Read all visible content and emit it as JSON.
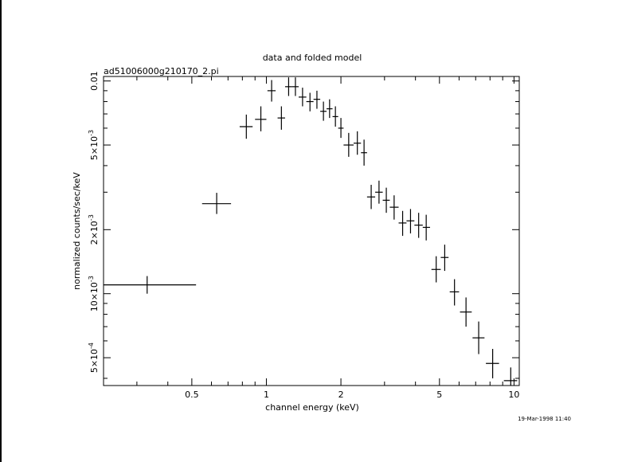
{
  "chart_data": {
    "type": "scatter",
    "title": "data and folded model",
    "subtitle": "ad51006000g210170_2.pi",
    "xlabel": "channel energy (keV)",
    "ylabel": "normalized counts/sec/keV",
    "timestamp": "19-Mar-1998 11:40",
    "x_scale": "log",
    "y_scale": "log",
    "xlim": [
      0.22,
      10.5
    ],
    "ylim": [
      0.00037,
      0.0105
    ],
    "grid": false,
    "legend": "none",
    "x_ticks": [
      {
        "value": 0.5,
        "label": "0.5"
      },
      {
        "value": 1,
        "label": "1"
      },
      {
        "value": 2,
        "label": "2"
      },
      {
        "value": 5,
        "label": "5"
      },
      {
        "value": 10,
        "label": "10"
      }
    ],
    "y_ticks": [
      {
        "value": 0.0005,
        "mant": "5",
        "exp": "-4"
      },
      {
        "value": 0.001,
        "mant": "10",
        "exp": "-3"
      },
      {
        "value": 0.002,
        "mant": "2",
        "exp": "-3"
      },
      {
        "value": 0.005,
        "mant": "5",
        "exp": "-3"
      },
      {
        "value": 0.01,
        "plain": "0.01"
      }
    ],
    "points": [
      {
        "x": 0.33,
        "xlo": 0.22,
        "xhi": 0.52,
        "y": 0.0011,
        "ylo": 0.001,
        "yhi": 0.00121
      },
      {
        "x": 0.63,
        "xlo": 0.55,
        "xhi": 0.72,
        "y": 0.00265,
        "ylo": 0.00237,
        "yhi": 0.00298
      },
      {
        "x": 0.83,
        "xlo": 0.78,
        "xhi": 0.88,
        "y": 0.0061,
        "ylo": 0.00535,
        "yhi": 0.00695
      },
      {
        "x": 0.95,
        "xlo": 0.9,
        "xhi": 1.0,
        "y": 0.0066,
        "ylo": 0.0058,
        "yhi": 0.0076
      },
      {
        "x": 1.05,
        "xlo": 1.01,
        "xhi": 1.09,
        "y": 0.009,
        "ylo": 0.008,
        "yhi": 0.0101
      },
      {
        "x": 1.15,
        "xlo": 1.11,
        "xhi": 1.19,
        "y": 0.0067,
        "ylo": 0.0059,
        "yhi": 0.0076
      },
      {
        "x": 1.23,
        "xlo": 1.19,
        "xhi": 1.27,
        "y": 0.0094,
        "ylo": 0.0085,
        "yhi": 0.0104
      },
      {
        "x": 1.31,
        "xlo": 1.27,
        "xhi": 1.35,
        "y": 0.0094,
        "ylo": 0.0085,
        "yhi": 0.0104
      },
      {
        "x": 1.4,
        "xlo": 1.35,
        "xhi": 1.45,
        "y": 0.0084,
        "ylo": 0.0076,
        "yhi": 0.0093
      },
      {
        "x": 1.5,
        "xlo": 1.45,
        "xhi": 1.55,
        "y": 0.008,
        "ylo": 0.0072,
        "yhi": 0.0088
      },
      {
        "x": 1.6,
        "xlo": 1.55,
        "xhi": 1.65,
        "y": 0.0082,
        "ylo": 0.0074,
        "yhi": 0.009
      },
      {
        "x": 1.7,
        "xlo": 1.65,
        "xhi": 1.75,
        "y": 0.0072,
        "ylo": 0.0065,
        "yhi": 0.008
      },
      {
        "x": 1.8,
        "xlo": 1.75,
        "xhi": 1.85,
        "y": 0.0074,
        "ylo": 0.0067,
        "yhi": 0.0082
      },
      {
        "x": 1.9,
        "xlo": 1.85,
        "xhi": 1.95,
        "y": 0.0068,
        "ylo": 0.0061,
        "yhi": 0.0076
      },
      {
        "x": 2.0,
        "xlo": 1.95,
        "xhi": 2.05,
        "y": 0.006,
        "ylo": 0.0054,
        "yhi": 0.0067
      },
      {
        "x": 2.15,
        "xlo": 2.05,
        "xhi": 2.25,
        "y": 0.005,
        "ylo": 0.0044,
        "yhi": 0.0057
      },
      {
        "x": 2.33,
        "xlo": 2.25,
        "xhi": 2.41,
        "y": 0.0051,
        "ylo": 0.0045,
        "yhi": 0.0058
      },
      {
        "x": 2.48,
        "xlo": 2.41,
        "xhi": 2.55,
        "y": 0.0046,
        "ylo": 0.004,
        "yhi": 0.0053
      },
      {
        "x": 2.65,
        "xlo": 2.55,
        "xhi": 2.75,
        "y": 0.00285,
        "ylo": 0.0025,
        "yhi": 0.00325
      },
      {
        "x": 2.85,
        "xlo": 2.75,
        "xhi": 2.95,
        "y": 0.003,
        "ylo": 0.00265,
        "yhi": 0.0034
      },
      {
        "x": 3.05,
        "xlo": 2.95,
        "xhi": 3.15,
        "y": 0.00275,
        "ylo": 0.0024,
        "yhi": 0.00315
      },
      {
        "x": 3.28,
        "xlo": 3.15,
        "xhi": 3.42,
        "y": 0.00255,
        "ylo": 0.00223,
        "yhi": 0.0029
      },
      {
        "x": 3.55,
        "xlo": 3.42,
        "xhi": 3.68,
        "y": 0.00215,
        "ylo": 0.00187,
        "yhi": 0.00245
      },
      {
        "x": 3.82,
        "xlo": 3.68,
        "xhi": 3.96,
        "y": 0.0022,
        "ylo": 0.00192,
        "yhi": 0.0025
      },
      {
        "x": 4.12,
        "xlo": 3.96,
        "xhi": 4.28,
        "y": 0.0021,
        "ylo": 0.00183,
        "yhi": 0.0024
      },
      {
        "x": 4.42,
        "xlo": 4.28,
        "xhi": 4.58,
        "y": 0.00205,
        "ylo": 0.00178,
        "yhi": 0.00235
      },
      {
        "x": 4.85,
        "xlo": 4.64,
        "xhi": 5.06,
        "y": 0.0013,
        "ylo": 0.00113,
        "yhi": 0.0015
      },
      {
        "x": 5.25,
        "xlo": 5.06,
        "xhi": 5.44,
        "y": 0.00148,
        "ylo": 0.00128,
        "yhi": 0.0017
      },
      {
        "x": 5.75,
        "xlo": 5.5,
        "xhi": 6.0,
        "y": 0.00102,
        "ylo": 0.00088,
        "yhi": 0.00117
      },
      {
        "x": 6.4,
        "xlo": 6.05,
        "xhi": 6.75,
        "y": 0.00082,
        "ylo": 0.0007,
        "yhi": 0.00096
      },
      {
        "x": 7.2,
        "xlo": 6.8,
        "xhi": 7.6,
        "y": 0.00062,
        "ylo": 0.00052,
        "yhi": 0.00074
      },
      {
        "x": 8.2,
        "xlo": 7.7,
        "xhi": 8.7,
        "y": 0.00047,
        "ylo": 0.0004,
        "yhi": 0.00055
      },
      {
        "x": 9.7,
        "xlo": 9.1,
        "xhi": 10.3,
        "y": 0.00039,
        "ylo": 0.00034,
        "yhi": 0.00045
      }
    ]
  }
}
